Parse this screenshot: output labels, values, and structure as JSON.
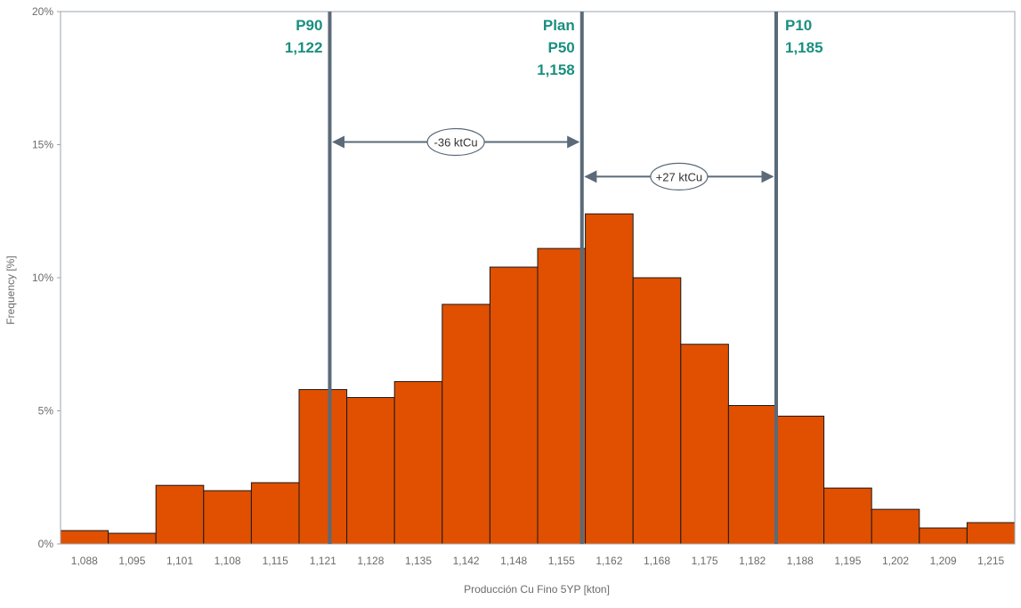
{
  "chart_data": {
    "type": "bar",
    "xlabel": "Producción Cu Fino 5YP [kton]",
    "ylabel": "Frequency [%]",
    "ylim": [
      0,
      20
    ],
    "yticks": [
      "0%",
      "5%",
      "10%",
      "15%",
      "20%"
    ],
    "ytick_values": [
      0,
      5,
      10,
      15,
      20
    ],
    "categories": [
      "1,088",
      "1,095",
      "1,101",
      "1,108",
      "1,115",
      "1,121",
      "1,128",
      "1,135",
      "1,142",
      "1,148",
      "1,155",
      "1,162",
      "1,168",
      "1,175",
      "1,182",
      "1,188",
      "1,195",
      "1,202",
      "1,209",
      "1,215"
    ],
    "bin_centers": [
      1088,
      1095,
      1101,
      1108,
      1115,
      1121,
      1128,
      1135,
      1142,
      1148,
      1155,
      1162,
      1168,
      1175,
      1182,
      1188,
      1195,
      1202,
      1209,
      1215
    ],
    "values": [
      0.5,
      0.4,
      2.2,
      2.0,
      2.3,
      5.8,
      5.5,
      6.1,
      9.0,
      10.4,
      11.1,
      12.4,
      10.0,
      7.5,
      5.2,
      4.8,
      2.1,
      1.3,
      0.6,
      0.8
    ],
    "markers": [
      {
        "lines": [
          "P90",
          "1,122"
        ],
        "x": 1122
      },
      {
        "lines": [
          "Plan",
          "P50",
          "1,158"
        ],
        "x": 1158
      },
      {
        "lines": [
          "P10",
          "1,185"
        ],
        "x": 1185
      }
    ],
    "differences": [
      {
        "label": "-36 ktCu",
        "from": 1122,
        "to": 1158,
        "y": 15.1
      },
      {
        "label": "+27 ktCu",
        "from": 1158,
        "to": 1185,
        "y": 13.8
      }
    ],
    "colors": {
      "bar": "#e05000",
      "bar_edge": "#1a1a1a",
      "marker_line": "#5a6a78",
      "marker_text": "#1a8f7f",
      "frame": "#9aa5af"
    },
    "grid": false,
    "legend": "none"
  }
}
